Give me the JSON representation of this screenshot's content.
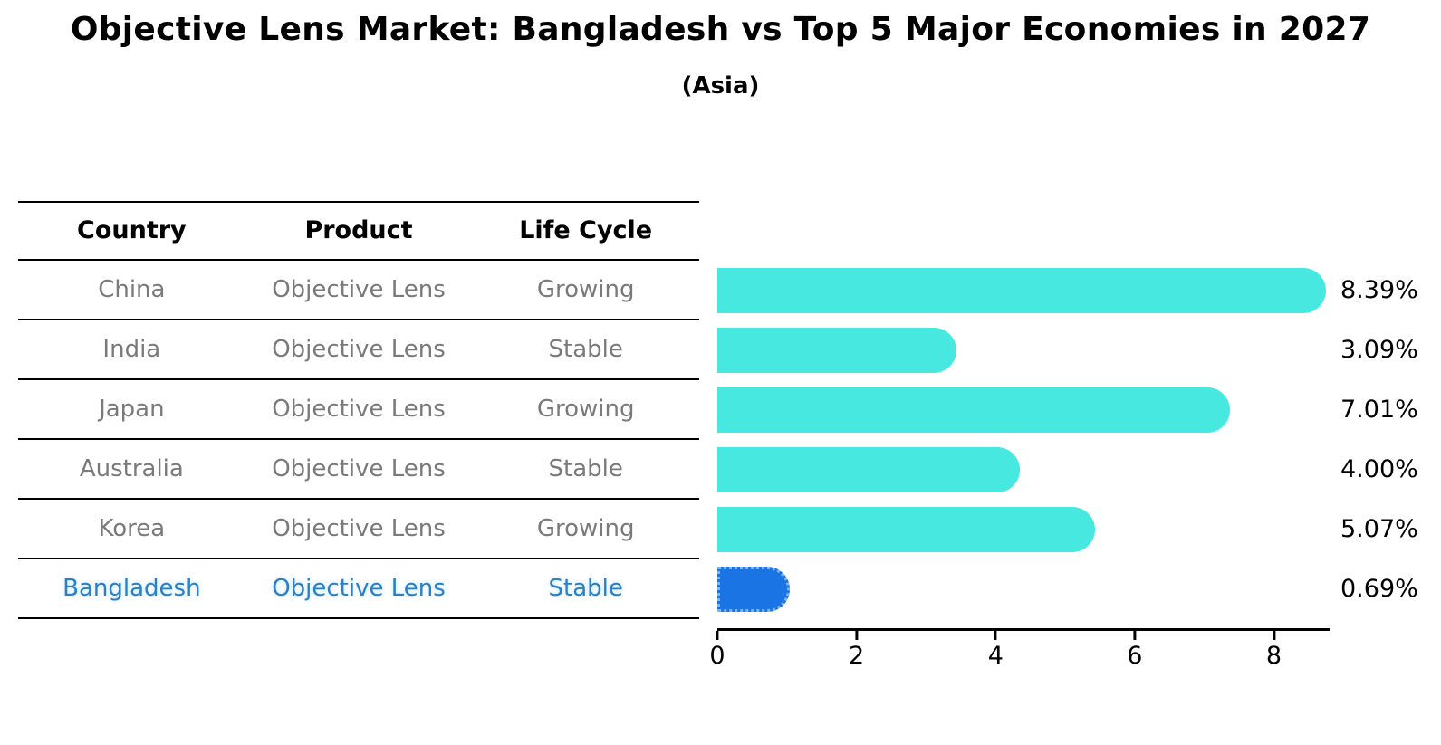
{
  "header": {
    "title": "Objective Lens Market: Bangladesh vs Top 5 Major Economies in 2027",
    "subtitle": "(Asia)"
  },
  "table": {
    "columns": [
      "Country",
      "Product",
      "Life Cycle"
    ],
    "rows": [
      {
        "country": "China",
        "product": "Objective Lens",
        "life_cycle": "Growing",
        "highlight": false
      },
      {
        "country": "India",
        "product": "Objective Lens",
        "life_cycle": "Stable",
        "highlight": false
      },
      {
        "country": "Japan",
        "product": "Objective Lens",
        "life_cycle": "Growing",
        "highlight": false
      },
      {
        "country": "Australia",
        "product": "Objective Lens",
        "life_cycle": "Stable",
        "highlight": false
      },
      {
        "country": "Korea",
        "product": "Objective Lens",
        "life_cycle": "Growing",
        "highlight": false
      },
      {
        "country": "Bangladesh",
        "product": "Objective Lens",
        "life_cycle": "Stable",
        "highlight": true
      }
    ]
  },
  "chart_data": {
    "type": "bar",
    "orientation": "horizontal",
    "title": "Objective Lens Market: Bangladesh vs Top 5 Major Economies in 2027",
    "subtitle": "(Asia)",
    "categories": [
      "China",
      "India",
      "Japan",
      "Australia",
      "Korea",
      "Bangladesh"
    ],
    "values": [
      8.39,
      3.09,
      7.01,
      4.0,
      5.07,
      0.69
    ],
    "value_labels": [
      "8.39%",
      "3.09%",
      "7.01%",
      "4.00%",
      "5.07%",
      "0.69%"
    ],
    "unit": "%",
    "xticks": [
      0,
      2,
      4,
      6,
      8
    ],
    "xlim": [
      0,
      8.8
    ],
    "highlight_index": 5,
    "bar_color": "#46E8E0",
    "highlight_color": "#1B74E4",
    "grid": false,
    "legend": false
  },
  "colors": {
    "background": "#ffffff",
    "axis": "#000000",
    "text_muted": "#7a7a7a",
    "highlight_text": "#2B7FC2"
  }
}
